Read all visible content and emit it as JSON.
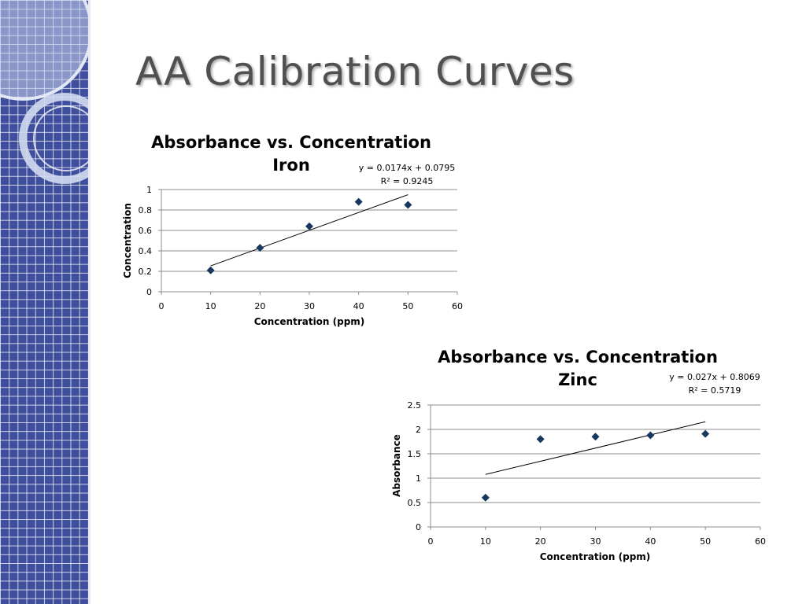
{
  "slide": {
    "title": "AA Calibration Curves"
  },
  "colors": {
    "band": "#3f4f9e",
    "marker": "#17375e",
    "grid": "#8c8c8c",
    "title": "#505050"
  },
  "chart_data": [
    {
      "type": "scatter",
      "title_line1": "Absorbance vs. Concentration",
      "title_line2": "Iron",
      "xlabel": "Concentration (ppm)",
      "ylabel": "Concentration",
      "x": [
        10,
        20,
        30,
        40,
        50
      ],
      "y": [
        0.21,
        0.43,
        0.64,
        0.88,
        0.85
      ],
      "xlim": [
        0,
        60
      ],
      "ylim": [
        0,
        1
      ],
      "x_ticks": [
        0,
        10,
        20,
        30,
        40,
        50,
        60
      ],
      "y_ticks": [
        0,
        0.2,
        0.4,
        0.6,
        0.8,
        1
      ],
      "x_tick_labels": [
        "0",
        "10",
        "20",
        "30",
        "40",
        "50",
        "60"
      ],
      "y_tick_labels": [
        "0",
        "0.2",
        "0.4",
        "0.6",
        "0.8",
        "1"
      ],
      "trendline": {
        "slope": 0.0174,
        "intercept": 0.0795
      },
      "equation": "y = 0.0174x + 0.0795",
      "r_squared": "R² = 0.9245",
      "grid": "horizontal"
    },
    {
      "type": "scatter",
      "title_line1": "Absorbance vs. Concentration",
      "title_line2": "Zinc",
      "xlabel": "Concentration (ppm)",
      "ylabel": "Absorbance",
      "x": [
        10,
        20,
        30,
        40,
        50
      ],
      "y": [
        0.6,
        1.8,
        1.85,
        1.88,
        1.91
      ],
      "xlim": [
        0,
        60
      ],
      "ylim": [
        0,
        2.5
      ],
      "x_ticks": [
        0,
        10,
        20,
        30,
        40,
        50,
        60
      ],
      "y_ticks": [
        0,
        0.5,
        1,
        1.5,
        2,
        2.5
      ],
      "x_tick_labels": [
        "0",
        "10",
        "20",
        "30",
        "40",
        "50",
        "60"
      ],
      "y_tick_labels": [
        "0",
        "0.5",
        "1",
        "1.5",
        "2",
        "2.5"
      ],
      "trendline": {
        "slope": 0.027,
        "intercept": 0.8069
      },
      "equation": "y = 0.027x + 0.8069",
      "r_squared": "R² = 0.5719",
      "grid": "horizontal"
    }
  ]
}
